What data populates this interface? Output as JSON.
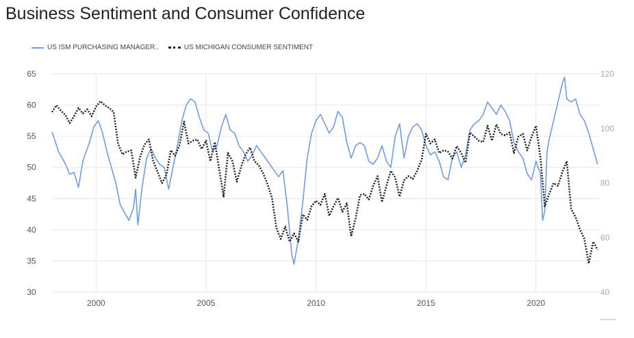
{
  "title": "Business Sentiment and Consumer Confidence",
  "colors": {
    "ism": "#6f9be6",
    "michigan": "#222222",
    "grid": "#e6e6e6",
    "tick": "#555555",
    "right_tick": "#aaaaaa"
  },
  "chart_data": {
    "type": "line",
    "title": "Business Sentiment and Consumer Confidence",
    "legend_position": "top-left",
    "grid": true,
    "x_range": [
      1998.0,
      2022.9
    ],
    "x_ticks": [
      "2000",
      "2005",
      "2010",
      "2015",
      "2020"
    ],
    "y_left": {
      "lim": [
        30,
        65
      ],
      "ticks": [
        "30",
        "35",
        "40",
        "45",
        "50",
        "55",
        "60",
        "65"
      ]
    },
    "y_right": {
      "lim": [
        40,
        120
      ],
      "ticks": [
        "40",
        "60",
        "80",
        "100",
        "120"
      ]
    },
    "series": [
      {
        "name": "US ISM PURCHASING MANAGER..",
        "axis": "left",
        "style": "solid",
        "points": [
          [
            1998.0,
            55.7
          ],
          [
            1998.3,
            52.5
          ],
          [
            1998.6,
            50.6
          ],
          [
            1998.8,
            48.9
          ],
          [
            1999.0,
            49.2
          ],
          [
            1999.2,
            46.8
          ],
          [
            1999.4,
            51.0
          ],
          [
            1999.7,
            54.0
          ],
          [
            1999.9,
            56.5
          ],
          [
            2000.1,
            57.5
          ],
          [
            2000.3,
            55.5
          ],
          [
            2000.5,
            52.5
          ],
          [
            2000.7,
            50.0
          ],
          [
            2000.9,
            47.5
          ],
          [
            2001.1,
            44.0
          ],
          [
            2001.3,
            42.7
          ],
          [
            2001.5,
            41.5
          ],
          [
            2001.7,
            43.5
          ],
          [
            2001.8,
            46.5
          ],
          [
            2001.9,
            40.8
          ],
          [
            2002.1,
            47.0
          ],
          [
            2002.3,
            51.5
          ],
          [
            2002.5,
            53.0
          ],
          [
            2002.7,
            51.5
          ],
          [
            2002.9,
            50.5
          ],
          [
            2003.1,
            50.0
          ],
          [
            2003.3,
            46.5
          ],
          [
            2003.5,
            50.0
          ],
          [
            2003.7,
            53.5
          ],
          [
            2003.9,
            57.5
          ],
          [
            2004.1,
            60.0
          ],
          [
            2004.3,
            61.0
          ],
          [
            2004.5,
            60.5
          ],
          [
            2004.7,
            58.0
          ],
          [
            2004.9,
            56.0
          ],
          [
            2005.1,
            55.5
          ],
          [
            2005.3,
            52.5
          ],
          [
            2005.5,
            53.5
          ],
          [
            2005.7,
            56.5
          ],
          [
            2005.9,
            58.5
          ],
          [
            2006.1,
            56.0
          ],
          [
            2006.3,
            55.5
          ],
          [
            2006.5,
            53.5
          ],
          [
            2006.7,
            52.5
          ],
          [
            2006.9,
            51.0
          ],
          [
            2007.1,
            52.0
          ],
          [
            2007.3,
            53.5
          ],
          [
            2007.5,
            52.5
          ],
          [
            2007.7,
            51.5
          ],
          [
            2007.9,
            50.5
          ],
          [
            2008.1,
            49.5
          ],
          [
            2008.3,
            48.5
          ],
          [
            2008.5,
            49.5
          ],
          [
            2008.7,
            43.5
          ],
          [
            2008.9,
            36.0
          ],
          [
            2009.0,
            34.5
          ],
          [
            2009.2,
            38.5
          ],
          [
            2009.4,
            44.5
          ],
          [
            2009.6,
            51.5
          ],
          [
            2009.8,
            55.5
          ],
          [
            2010.0,
            57.5
          ],
          [
            2010.2,
            58.5
          ],
          [
            2010.4,
            57.0
          ],
          [
            2010.6,
            55.5
          ],
          [
            2010.8,
            56.5
          ],
          [
            2011.0,
            59.0
          ],
          [
            2011.2,
            58.0
          ],
          [
            2011.4,
            54.0
          ],
          [
            2011.6,
            51.5
          ],
          [
            2011.8,
            53.5
          ],
          [
            2012.0,
            54.0
          ],
          [
            2012.2,
            53.5
          ],
          [
            2012.4,
            51.0
          ],
          [
            2012.6,
            50.5
          ],
          [
            2012.8,
            51.5
          ],
          [
            2013.0,
            53.5
          ],
          [
            2013.2,
            51.0
          ],
          [
            2013.4,
            50.0
          ],
          [
            2013.6,
            55.0
          ],
          [
            2013.8,
            57.0
          ],
          [
            2014.0,
            51.5
          ],
          [
            2014.2,
            55.0
          ],
          [
            2014.4,
            56.5
          ],
          [
            2014.6,
            57.0
          ],
          [
            2014.8,
            56.0
          ],
          [
            2015.0,
            53.5
          ],
          [
            2015.2,
            52.0
          ],
          [
            2015.4,
            52.5
          ],
          [
            2015.6,
            51.0
          ],
          [
            2015.8,
            48.5
          ],
          [
            2016.0,
            48.0
          ],
          [
            2016.2,
            51.5
          ],
          [
            2016.4,
            52.5
          ],
          [
            2016.6,
            50.0
          ],
          [
            2016.8,
            52.0
          ],
          [
            2017.0,
            56.0
          ],
          [
            2017.2,
            57.0
          ],
          [
            2017.4,
            57.5
          ],
          [
            2017.6,
            58.5
          ],
          [
            2017.8,
            60.5
          ],
          [
            2018.0,
            59.5
          ],
          [
            2018.2,
            58.5
          ],
          [
            2018.4,
            60.0
          ],
          [
            2018.6,
            59.0
          ],
          [
            2018.8,
            57.5
          ],
          [
            2019.0,
            54.0
          ],
          [
            2019.2,
            52.5
          ],
          [
            2019.4,
            51.5
          ],
          [
            2019.6,
            49.0
          ],
          [
            2019.8,
            48.0
          ],
          [
            2020.0,
            51.0
          ],
          [
            2020.2,
            49.0
          ],
          [
            2020.3,
            41.5
          ],
          [
            2020.4,
            43.0
          ],
          [
            2020.5,
            52.5
          ],
          [
            2020.6,
            54.5
          ],
          [
            2020.8,
            57.5
          ],
          [
            2021.0,
            60.5
          ],
          [
            2021.2,
            63.5
          ],
          [
            2021.3,
            64.5
          ],
          [
            2021.4,
            61.0
          ],
          [
            2021.6,
            60.5
          ],
          [
            2021.8,
            61.0
          ],
          [
            2022.0,
            58.5
          ],
          [
            2022.2,
            57.5
          ],
          [
            2022.4,
            55.5
          ],
          [
            2022.6,
            53.0
          ],
          [
            2022.8,
            50.5
          ]
        ]
      },
      {
        "name": "US MICHIGAN CONSUMER SENTIMENT",
        "axis": "right",
        "style": "dotted",
        "points": [
          [
            1998.0,
            106.0
          ],
          [
            1998.2,
            108.5
          ],
          [
            1998.4,
            106.5
          ],
          [
            1998.6,
            105.0
          ],
          [
            1998.8,
            102.0
          ],
          [
            1999.0,
            104.5
          ],
          [
            1999.2,
            107.5
          ],
          [
            1999.4,
            105.5
          ],
          [
            1999.6,
            107.0
          ],
          [
            1999.8,
            104.5
          ],
          [
            2000.0,
            108.0
          ],
          [
            2000.2,
            110.0
          ],
          [
            2000.4,
            108.5
          ],
          [
            2000.6,
            107.5
          ],
          [
            2000.8,
            106.0
          ],
          [
            2001.0,
            94.5
          ],
          [
            2001.2,
            90.5
          ],
          [
            2001.4,
            91.5
          ],
          [
            2001.6,
            92.0
          ],
          [
            2001.8,
            82.0
          ],
          [
            2002.0,
            89.5
          ],
          [
            2002.2,
            94.0
          ],
          [
            2002.4,
            96.0
          ],
          [
            2002.6,
            88.0
          ],
          [
            2002.8,
            84.0
          ],
          [
            2003.0,
            80.0
          ],
          [
            2003.2,
            83.0
          ],
          [
            2003.4,
            92.0
          ],
          [
            2003.6,
            90.0
          ],
          [
            2003.8,
            94.0
          ],
          [
            2004.0,
            102.5
          ],
          [
            2004.2,
            94.5
          ],
          [
            2004.4,
            95.5
          ],
          [
            2004.6,
            96.0
          ],
          [
            2004.8,
            92.5
          ],
          [
            2005.0,
            95.5
          ],
          [
            2005.2,
            88.0
          ],
          [
            2005.4,
            95.0
          ],
          [
            2005.6,
            85.0
          ],
          [
            2005.8,
            75.0
          ],
          [
            2006.0,
            91.0
          ],
          [
            2006.2,
            88.0
          ],
          [
            2006.4,
            80.5
          ],
          [
            2006.6,
            86.0
          ],
          [
            2006.8,
            90.5
          ],
          [
            2007.0,
            93.0
          ],
          [
            2007.2,
            88.0
          ],
          [
            2007.4,
            86.5
          ],
          [
            2007.6,
            83.5
          ],
          [
            2007.8,
            79.5
          ],
          [
            2008.0,
            74.5
          ],
          [
            2008.2,
            63.5
          ],
          [
            2008.4,
            59.5
          ],
          [
            2008.6,
            64.0
          ],
          [
            2008.8,
            58.5
          ],
          [
            2009.0,
            61.5
          ],
          [
            2009.2,
            58.5
          ],
          [
            2009.4,
            68.5
          ],
          [
            2009.6,
            66.5
          ],
          [
            2009.8,
            71.5
          ],
          [
            2010.0,
            73.5
          ],
          [
            2010.2,
            72.0
          ],
          [
            2010.4,
            76.0
          ],
          [
            2010.6,
            68.0
          ],
          [
            2010.8,
            71.5
          ],
          [
            2011.0,
            74.5
          ],
          [
            2011.2,
            69.5
          ],
          [
            2011.4,
            72.5
          ],
          [
            2011.6,
            60.5
          ],
          [
            2011.8,
            67.0
          ],
          [
            2012.0,
            75.5
          ],
          [
            2012.2,
            76.0
          ],
          [
            2012.4,
            74.0
          ],
          [
            2012.6,
            79.0
          ],
          [
            2012.8,
            82.5
          ],
          [
            2013.0,
            73.0
          ],
          [
            2013.2,
            79.0
          ],
          [
            2013.4,
            84.5
          ],
          [
            2013.6,
            82.0
          ],
          [
            2013.8,
            75.0
          ],
          [
            2014.0,
            81.0
          ],
          [
            2014.2,
            82.5
          ],
          [
            2014.4,
            81.5
          ],
          [
            2014.6,
            84.5
          ],
          [
            2014.8,
            88.5
          ],
          [
            2015.0,
            98.0
          ],
          [
            2015.2,
            94.5
          ],
          [
            2015.4,
            96.0
          ],
          [
            2015.6,
            91.0
          ],
          [
            2015.8,
            92.0
          ],
          [
            2016.0,
            91.5
          ],
          [
            2016.2,
            89.0
          ],
          [
            2016.4,
            93.5
          ],
          [
            2016.6,
            91.0
          ],
          [
            2016.8,
            87.5
          ],
          [
            2017.0,
            98.5
          ],
          [
            2017.2,
            97.0
          ],
          [
            2017.4,
            95.5
          ],
          [
            2017.6,
            95.0
          ],
          [
            2017.8,
            101.0
          ],
          [
            2018.0,
            95.5
          ],
          [
            2018.2,
            101.5
          ],
          [
            2018.4,
            98.0
          ],
          [
            2018.6,
            97.5
          ],
          [
            2018.8,
            98.5
          ],
          [
            2019.0,
            91.0
          ],
          [
            2019.2,
            97.0
          ],
          [
            2019.4,
            98.0
          ],
          [
            2019.6,
            92.0
          ],
          [
            2019.8,
            97.0
          ],
          [
            2020.0,
            101.0
          ],
          [
            2020.2,
            89.5
          ],
          [
            2020.4,
            71.5
          ],
          [
            2020.6,
            76.0
          ],
          [
            2020.8,
            80.0
          ],
          [
            2021.0,
            79.0
          ],
          [
            2021.2,
            84.0
          ],
          [
            2021.4,
            88.0
          ],
          [
            2021.6,
            70.5
          ],
          [
            2021.8,
            67.5
          ],
          [
            2022.0,
            63.0
          ],
          [
            2022.2,
            59.5
          ],
          [
            2022.4,
            50.5
          ],
          [
            2022.6,
            58.5
          ],
          [
            2022.8,
            55.5
          ]
        ]
      }
    ]
  }
}
